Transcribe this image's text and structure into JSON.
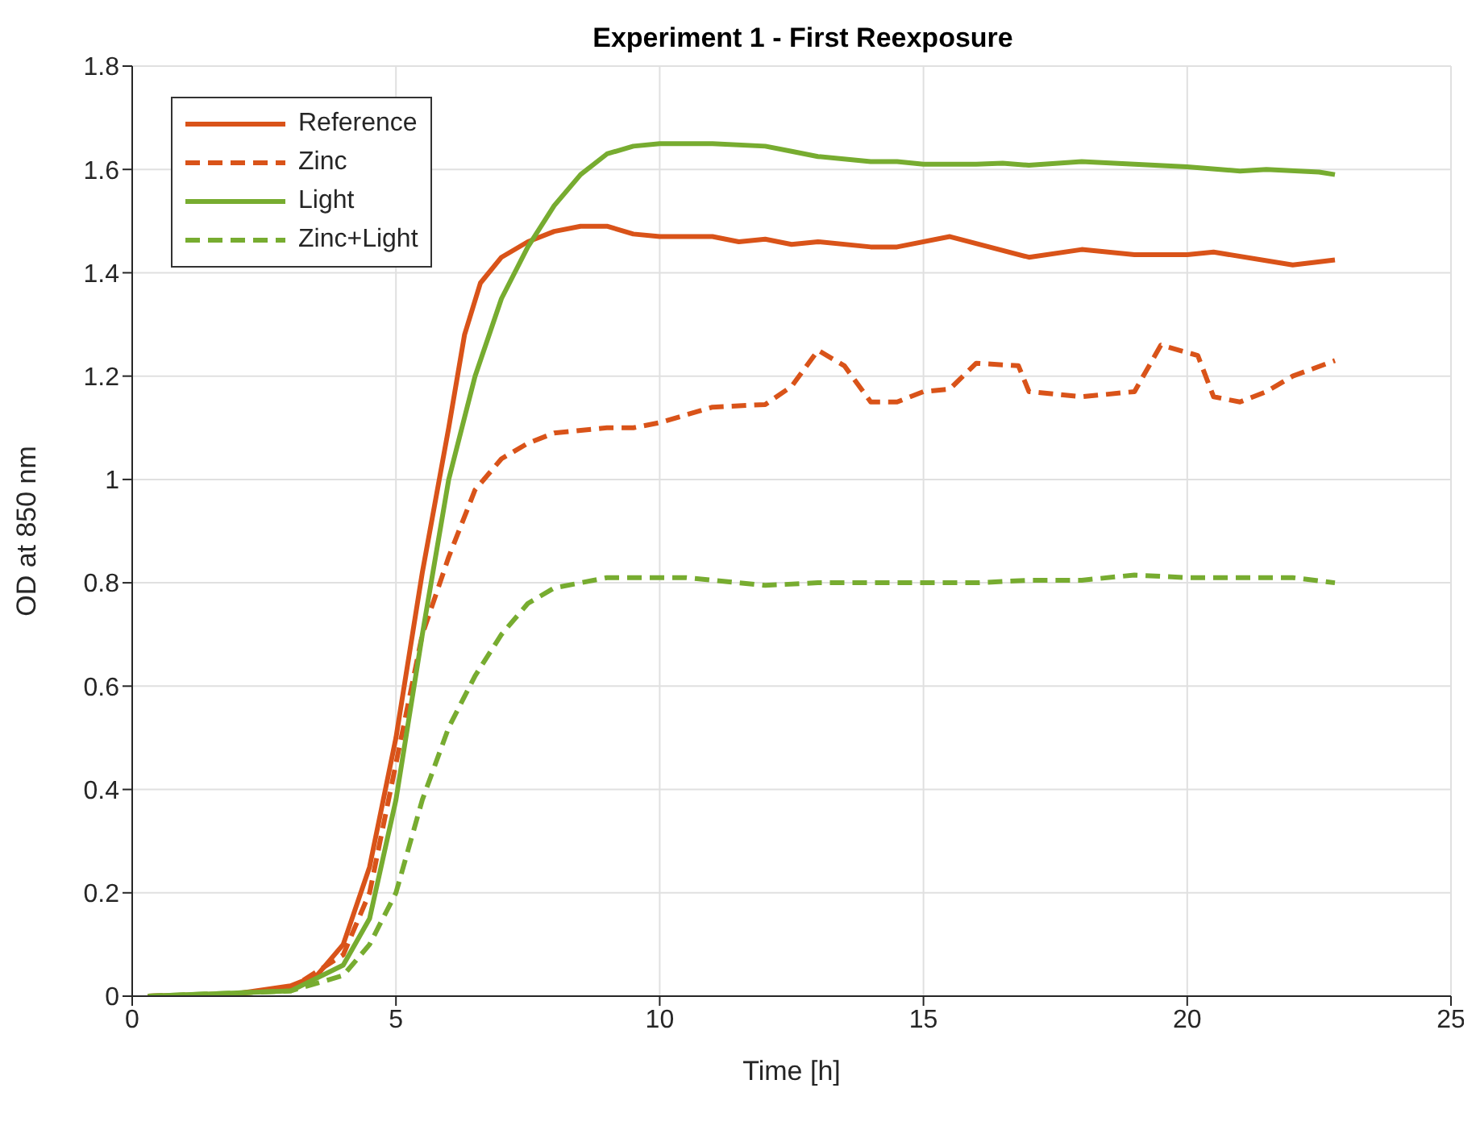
{
  "chart_data": {
    "type": "line",
    "title": "Experiment 1 - First Reexposure",
    "xlabel": "Time [h]",
    "ylabel": "OD at 850 nm",
    "xlim": [
      0,
      25
    ],
    "xticks": [
      0,
      5,
      10,
      15,
      20,
      25
    ],
    "ylim": [
      0,
      1.8
    ],
    "yticks": [
      0,
      0.2,
      0.4,
      0.6,
      0.8,
      1,
      1.2,
      1.4,
      1.6,
      1.8
    ],
    "grid": true,
    "legend": "top left",
    "marker": "none",
    "series": [
      {
        "name": "Reference",
        "color": "#d95319",
        "line_style": "solid",
        "x": [
          0.3,
          2,
          3,
          3.5,
          4,
          4.5,
          5,
          5.5,
          6,
          6.3,
          6.6,
          7,
          7.5,
          8,
          8.5,
          9,
          9.5,
          10,
          11,
          11.5,
          12,
          12.5,
          13,
          14,
          14.5,
          15.5,
          17,
          18,
          19,
          20,
          20.5,
          22,
          22.8
        ],
        "values": [
          0,
          0.005,
          0.02,
          0.04,
          0.1,
          0.25,
          0.5,
          0.82,
          1.1,
          1.28,
          1.38,
          1.43,
          1.46,
          1.48,
          1.49,
          1.49,
          1.475,
          1.47,
          1.47,
          1.46,
          1.465,
          1.455,
          1.46,
          1.45,
          1.45,
          1.47,
          1.43,
          1.445,
          1.435,
          1.435,
          1.44,
          1.415,
          1.425
        ]
      },
      {
        "name": "Zinc",
        "color": "#d95319",
        "line_style": "dashed",
        "x": [
          0.3,
          2,
          3,
          4,
          4.5,
          5,
          5.5,
          6,
          6.5,
          7,
          7.5,
          8,
          9,
          9.5,
          10,
          11,
          12,
          12.5,
          13,
          13.5,
          14,
          14.5,
          15,
          15.5,
          16,
          16.8,
          17,
          18,
          19,
          19.5,
          20.2,
          20.5,
          21,
          21.5,
          22,
          22.8
        ],
        "values": [
          0,
          0.005,
          0.015,
          0.08,
          0.2,
          0.45,
          0.7,
          0.85,
          0.98,
          1.04,
          1.07,
          1.09,
          1.1,
          1.1,
          1.11,
          1.14,
          1.145,
          1.18,
          1.25,
          1.22,
          1.15,
          1.15,
          1.17,
          1.175,
          1.225,
          1.22,
          1.17,
          1.16,
          1.17,
          1.26,
          1.24,
          1.16,
          1.15,
          1.17,
          1.2,
          1.23
        ]
      },
      {
        "name": "Light",
        "color": "#77ac30",
        "line_style": "solid",
        "x": [
          0.3,
          3,
          4,
          4.5,
          5,
          5.5,
          6,
          6.5,
          7,
          7.5,
          8,
          8.5,
          9,
          9.5,
          10,
          11,
          12,
          12.5,
          13,
          14,
          14.5,
          15,
          16,
          16.5,
          17,
          18,
          19,
          20,
          21,
          21.5,
          22.5,
          22.8
        ],
        "values": [
          0,
          0.01,
          0.06,
          0.15,
          0.38,
          0.7,
          1.0,
          1.2,
          1.35,
          1.45,
          1.53,
          1.59,
          1.63,
          1.645,
          1.65,
          1.65,
          1.645,
          1.635,
          1.625,
          1.615,
          1.615,
          1.61,
          1.61,
          1.612,
          1.608,
          1.615,
          1.61,
          1.605,
          1.597,
          1.6,
          1.595,
          1.59
        ]
      },
      {
        "name": "Zinc+Light",
        "color": "#77ac30",
        "line_style": "dashed",
        "x": [
          0.3,
          3,
          4,
          4.5,
          5,
          5.5,
          6,
          6.5,
          7,
          7.5,
          8,
          9,
          10,
          10.5,
          11,
          12,
          13,
          14,
          15,
          16,
          17,
          18,
          19,
          20,
          21,
          22,
          22.8
        ],
        "values": [
          0,
          0.01,
          0.04,
          0.1,
          0.2,
          0.38,
          0.52,
          0.62,
          0.7,
          0.76,
          0.79,
          0.81,
          0.81,
          0.81,
          0.805,
          0.795,
          0.8,
          0.8,
          0.8,
          0.8,
          0.805,
          0.805,
          0.815,
          0.81,
          0.81,
          0.81,
          0.8
        ]
      }
    ]
  }
}
